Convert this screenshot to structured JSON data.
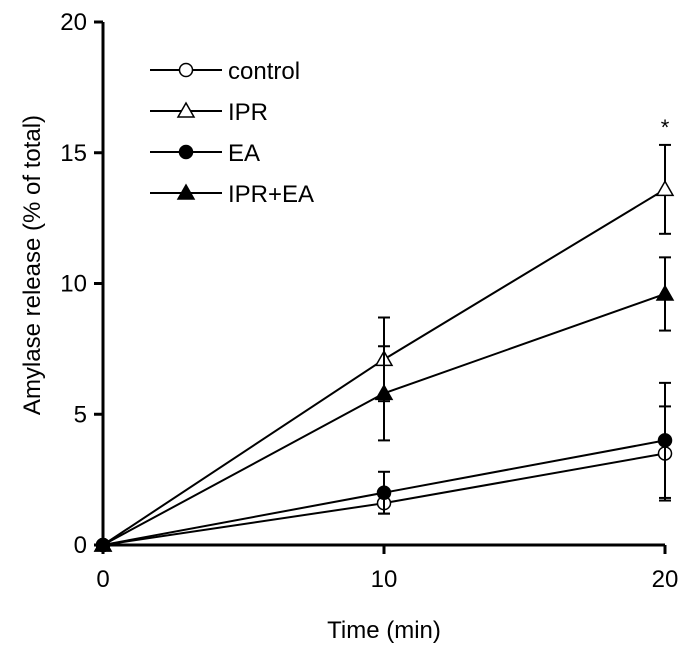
{
  "chart_data": {
    "type": "line",
    "title": "",
    "xlabel": "Time (min)",
    "ylabel": "Amylase release (% of total)",
    "x": [
      0,
      10,
      20
    ],
    "xlim": [
      0,
      20
    ],
    "ylim": [
      0,
      20
    ],
    "xticks": [
      0,
      10,
      20
    ],
    "yticks": [
      0,
      5,
      10,
      15,
      20
    ],
    "grid": false,
    "legend_position": "top-left",
    "series": [
      {
        "name": "control",
        "marker": "open-circle",
        "values": [
          0,
          1.6,
          3.5
        ],
        "errors": [
          0,
          0.4,
          1.8
        ]
      },
      {
        "name": "IPR",
        "marker": "open-triangle",
        "values": [
          0,
          7.1,
          13.6
        ],
        "errors": [
          0,
          1.6,
          1.7
        ]
      },
      {
        "name": "EA",
        "marker": "filled-circle",
        "values": [
          0,
          2.0,
          4.0
        ],
        "errors": [
          0,
          0.8,
          2.2
        ]
      },
      {
        "name": "IPR+EA",
        "marker": "filled-triangle",
        "values": [
          0,
          5.8,
          9.6
        ],
        "errors": [
          0,
          1.8,
          1.4
        ]
      }
    ],
    "annotations": [
      {
        "text": "*",
        "x": 20,
        "series": "IPR"
      }
    ]
  }
}
